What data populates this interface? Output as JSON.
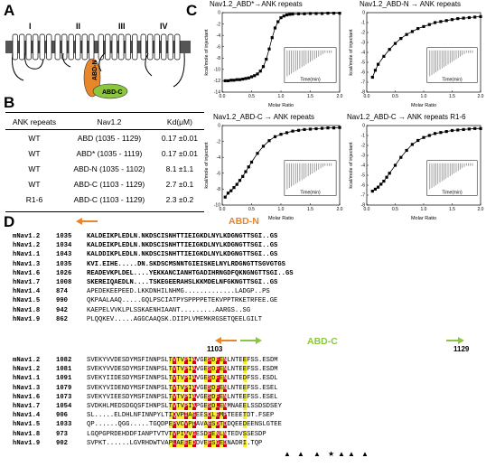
{
  "panel_labels": {
    "a": "A",
    "b": "B",
    "c": "C",
    "d": "D"
  },
  "panel_a": {
    "domains": [
      "I",
      "II",
      "III",
      "IV"
    ],
    "abd_n": "ABD-N",
    "abd_c": "ABD-C",
    "colors": {
      "abd_n": "#e8862a",
      "abd_c": "#8cc63f",
      "membrane": "#5a5a5a"
    }
  },
  "table": {
    "headers": [
      "ANK repeats",
      "Nav1.2",
      "Kd(μM)"
    ],
    "rows": [
      [
        "WT",
        "ABD (1035 - 1129)",
        "0.17 ±0.01"
      ],
      [
        "WT",
        "ABD* (1035 - 1119)",
        "0.17 ±0.01"
      ],
      [
        "WT",
        "ABD-N (1035 - 1102)",
        "8.1 ±1.1"
      ],
      [
        "WT",
        "ABD-C (1103 - 1129)",
        "2.7 ±0.1"
      ],
      [
        "R1-6",
        "ABD-C (1103 - 1129)",
        "2.3 ±0.2"
      ]
    ]
  },
  "itc": [
    {
      "title": "Nav1.2_ABD*→ANK repeats",
      "ylabel": "kcal/mole of injectant",
      "xlabel": "Molar Ratio",
      "inset_label": "Time(min)"
    },
    {
      "title": "Nav1.2_ABD-N → ANK repeats",
      "ylabel": "kcal/mole of injectant",
      "xlabel": "Molar Ratio",
      "inset_label": "Time(min)"
    },
    {
      "title": "Nav1.2_ABD-C → ANK repeats",
      "ylabel": "kcal/mole of injectant",
      "xlabel": "Molar Ratio",
      "inset_label": "Time(min)"
    },
    {
      "title": "Nav1.2_ABD-C → ANK repeats R1-6",
      "ylabel": "kcal/mole of injectant",
      "xlabel": "Molar Ratio",
      "inset_label": "Time(min)"
    }
  ],
  "chart_data": [
    {
      "type": "scatter",
      "title": "Nav1.2_ABD*→ANK repeats",
      "xlabel": "Molar Ratio",
      "ylabel": "kcal/mole of injectant",
      "xlim": [
        0,
        2.0
      ],
      "ylim": [
        -14,
        0
      ],
      "x": [
        0.05,
        0.1,
        0.15,
        0.2,
        0.25,
        0.3,
        0.35,
        0.4,
        0.45,
        0.5,
        0.55,
        0.6,
        0.65,
        0.7,
        0.75,
        0.8,
        0.85,
        0.9,
        0.95,
        1.0,
        1.05,
        1.1,
        1.15,
        1.2,
        1.3,
        1.4,
        1.5,
        1.6,
        1.7,
        1.8,
        1.9,
        2.0
      ],
      "y": [
        -12.0,
        -12.0,
        -11.9,
        -11.9,
        -11.8,
        -11.8,
        -11.7,
        -11.6,
        -11.5,
        -11.3,
        -11.1,
        -10.8,
        -10.3,
        -9.5,
        -8.2,
        -6.4,
        -4.4,
        -2.7,
        -1.6,
        -0.9,
        -0.6,
        -0.4,
        -0.3,
        -0.25,
        -0.2,
        -0.2,
        -0.15,
        -0.15,
        -0.15,
        -0.1,
        -0.1,
        -0.1
      ]
    },
    {
      "type": "scatter",
      "title": "Nav1.2_ABD-N → ANK repeats",
      "xlabel": "Molar Ratio",
      "ylabel": "kcal/mole of injectant",
      "xlim": [
        0,
        2.0
      ],
      "ylim": [
        -8,
        0
      ],
      "x": [
        0.1,
        0.15,
        0.2,
        0.3,
        0.4,
        0.5,
        0.6,
        0.7,
        0.8,
        0.9,
        1.0,
        1.1,
        1.2,
        1.3,
        1.4,
        1.5,
        1.6,
        1.7,
        1.8,
        1.9,
        2.0
      ],
      "y": [
        -6.5,
        -5.8,
        -5.2,
        -4.4,
        -3.7,
        -3.1,
        -2.6,
        -2.2,
        -1.9,
        -1.6,
        -1.4,
        -1.2,
        -1.0,
        -0.9,
        -0.8,
        -0.7,
        -0.6,
        -0.55,
        -0.5,
        -0.45,
        -0.4
      ]
    },
    {
      "type": "scatter",
      "title": "Nav1.2_ABD-C → ANK repeats",
      "xlabel": "Molar Ratio",
      "ylabel": "kcal/mole of injectant",
      "xlim": [
        0,
        2.0
      ],
      "ylim": [
        -10,
        0
      ],
      "x": [
        0.05,
        0.1,
        0.15,
        0.2,
        0.25,
        0.3,
        0.35,
        0.4,
        0.45,
        0.5,
        0.6,
        0.7,
        0.8,
        0.9,
        1.0,
        1.1,
        1.2,
        1.3,
        1.4,
        1.5,
        1.6,
        1.7,
        1.8,
        1.9,
        2.0
      ],
      "y": [
        -9.0,
        -8.5,
        -8.2,
        -7.8,
        -7.4,
        -6.9,
        -6.4,
        -5.8,
        -5.2,
        -4.6,
        -3.5,
        -2.6,
        -1.9,
        -1.4,
        -1.1,
        -0.9,
        -0.7,
        -0.6,
        -0.5,
        -0.45,
        -0.4,
        -0.35,
        -0.3,
        -0.3,
        -0.25
      ]
    },
    {
      "type": "scatter",
      "title": "Nav1.2_ABD-C → ANK repeats R1-6",
      "xlabel": "Molar Ratio",
      "ylabel": "kcal/mole of injectant",
      "xlim": [
        0,
        2.0
      ],
      "ylim": [
        -8,
        0
      ],
      "x": [
        0.1,
        0.15,
        0.2,
        0.25,
        0.3,
        0.35,
        0.4,
        0.5,
        0.6,
        0.7,
        0.8,
        0.9,
        1.0,
        1.1,
        1.2,
        1.3,
        1.4,
        1.5,
        1.6,
        1.7,
        1.8,
        1.9,
        2.0
      ],
      "y": [
        -6.6,
        -6.4,
        -6.2,
        -5.9,
        -5.6,
        -5.2,
        -4.8,
        -4.0,
        -3.2,
        -2.5,
        -1.9,
        -1.5,
        -1.2,
        -1.0,
        -0.8,
        -0.7,
        -0.6,
        -0.5,
        -0.45,
        -0.4,
        -0.35,
        -0.3,
        -0.3
      ]
    }
  ],
  "alignment": {
    "abd_n_label": "ABD-N",
    "abd_c_label": "ABD-C",
    "pos_1103": "1103",
    "pos_1129": "1129",
    "block1": [
      {
        "name": "mNav1.2",
        "num": "1035",
        "seq": "KALDEIKPLEDLN.NKDSCISNHTTIEIGKDLNYLKDGNGTTSGI..GS"
      },
      {
        "name": "hNav1.2",
        "num": "1034",
        "seq": "KALDEIKPLEDLN.NKDSCISNHTTIEIGKDLNYLKDGNGTTSGI..GS"
      },
      {
        "name": "hNav1.1",
        "num": "1043",
        "seq": "KALDDIKPLEDLN.NKDSCISNHTTIEIGKDLNYLKDGNGTTSGI..GS"
      },
      {
        "name": "hNav1.3",
        "num": "1035",
        "seq": "KVI.EIHE.....DN.SKDSCMSNNTGIEISKELNYLRDGNGTTSGVGTGS"
      },
      {
        "name": "hNav1.6",
        "num": "1026",
        "seq": "READEVKPLDEL....YEKKANCIANHTGADIHRNGDFQKNGNGTTSGI..GS"
      },
      {
        "name": "hNav1.7",
        "num": "1008",
        "seq": "SKEREIQAEDLN....TSKEGEERAHSLKKMDELNFGKNGTTSGI..GS"
      },
      {
        "name": "hNav1.4",
        "num": "874",
        "seq": "APEDEKEEPEED.LKKDNHILNHMG.............LADGP..PS"
      },
      {
        "name": "hNav1.5",
        "num": "990",
        "seq": "QKPAALAAQ.....GQLPSCIATPYSPPPPETEKVPPTRKETRFEE.GE"
      },
      {
        "name": "hNav1.8",
        "num": "942",
        "seq": "KAEPELVVKLPLSSKAENHIAANT.........AARGS..SG"
      },
      {
        "name": "hNav1.9",
        "num": "862",
        "seq": "PLQQKEV.....AGGCAAQSK.DIIPLVMEMKRGSETQEELGILT"
      }
    ],
    "block2": [
      {
        "name": "mNav1.2",
        "num": "1082",
        "seq": "SVEKYVVDESDYMSFINNPSLTVTVPIAVGESDFENLNTEEFSS.ESDM"
      },
      {
        "name": "hNav1.2",
        "num": "1081",
        "seq": "SVEKYVVDESDYMSFINNPSLTVTVPIAVGESDFENLNTEEFSS.ESDM"
      },
      {
        "name": "hNav1.1",
        "num": "1091",
        "seq": "SVEKYIIDESDYMSFINNPSLTVTVPIAVGESDFENLNTEDFSS.ESDL"
      },
      {
        "name": "hNav1.3",
        "num": "1079",
        "seq": "SVEKYVIDENDYMSFINNPSLTVTVPIAVGESDFENLNTEEFSS.ESEL"
      },
      {
        "name": "hNav1.6",
        "num": "1073",
        "seq": "SVEKYVIEESDYMSFINNPSLTVTVPIAVGESDFENLNTEEFSS.ESEL"
      },
      {
        "name": "hNav1.7",
        "num": "1054",
        "seq": "SVDKHLMEDSDGQSFIHNPSLTVTVPIAPGESDLENMNAEELSSDSDSEY"
      },
      {
        "name": "hNav1.4",
        "num": "906",
        "seq": "SL.....ELDHLNFINNPYLTIQVPIASEESDLEMPTEEETDT.FSEP"
      },
      {
        "name": "hNav1.5",
        "num": "1033",
        "seq": "QP......QGG.....TGQDPEPVCVPIAVAESDTDDQEEDEENSLGTEE"
      },
      {
        "name": "hNav1.8",
        "num": "973",
        "seq": "LGQPGPRDEHDDFIANPTVTVTVPIAVGESDFENLNTEDVSSESDP"
      },
      {
        "name": "hNav1.9",
        "num": "902",
        "seq": "SVPKT......LGVRHDWTVAPLAEEEDDVEFSGEDNADRI.TQP"
      }
    ],
    "markers": [
      "▲",
      "▲",
      "▲",
      "★",
      "▲",
      "▲",
      "▲"
    ]
  }
}
